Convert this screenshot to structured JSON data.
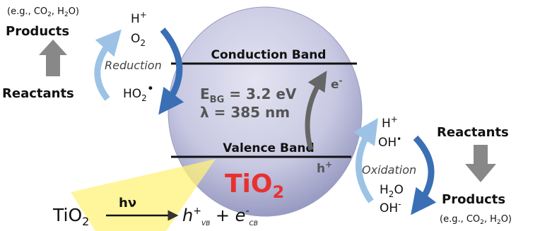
{
  "left": {
    "note": [
      "(e.g., CO",
      "2",
      ", H",
      "2",
      "O)"
    ],
    "products": "Products",
    "reactants": "Reactants"
  },
  "reduction": {
    "label": "Reduction",
    "in1": [
      "H",
      "+"
    ],
    "in2": [
      "O",
      "2"
    ],
    "out": [
      "HO",
      "2",
      "•"
    ]
  },
  "conduction_band": "Conduction Band",
  "valence_band": "Valence Band",
  "gap": {
    "ebg": [
      "E",
      "BG",
      " = 3.2 eV"
    ],
    "lambda": "λ = 385 nm"
  },
  "electron": [
    "e",
    "-"
  ],
  "hole": [
    "h",
    "+"
  ],
  "tio2": [
    "TiO",
    "2"
  ],
  "oxidation": {
    "label": "Oxidation",
    "in1": [
      "H",
      "+"
    ],
    "in2": [
      "OH",
      "•"
    ],
    "out1": [
      "H",
      "2",
      "O"
    ],
    "out2": [
      "OH",
      "-"
    ]
  },
  "right": {
    "reactants": "Reactants",
    "products": "Products",
    "note": [
      "(e.g., CO",
      "2",
      ", H",
      "2",
      "O)"
    ]
  },
  "equation": {
    "lhs": [
      "TiO",
      "2"
    ],
    "light": "hν",
    "rhs": [
      "h",
      "+",
      "VB",
      " + ",
      "e",
      "-",
      "CB"
    ]
  }
}
